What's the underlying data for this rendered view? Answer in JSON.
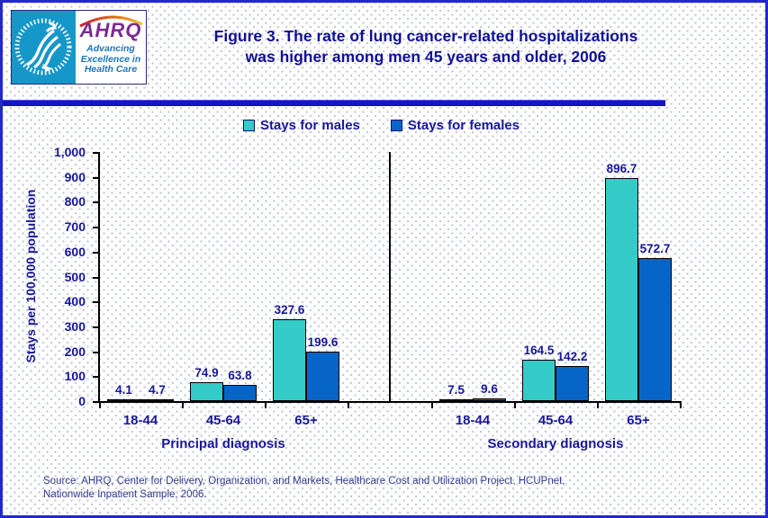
{
  "header": {
    "logo": {
      "name": "AHRQ",
      "tagline_lines": [
        "Advancing",
        "Excellence in",
        "Health Care"
      ],
      "hhs_icon": "hhs-eagle"
    },
    "title_line1": "Figure 3. The rate of lung cancer-related hospitalizations",
    "title_line2": "was higher among men 45 years and older, 2006"
  },
  "legend": {
    "items": [
      {
        "label": "Stays for males",
        "color": "#35cbc9"
      },
      {
        "label": "Stays for females",
        "color": "#0765c8"
      }
    ]
  },
  "chart_data": {
    "type": "bar",
    "title": "Figure 3. The rate of lung cancer-related hospitalizations was higher among men 45 years and older, 2006",
    "ylabel": "Stays per 100,000 population",
    "ylim": [
      0,
      1000
    ],
    "ytick_interval": 100,
    "yticks": [
      "0",
      "100",
      "200",
      "300",
      "400",
      "500",
      "600",
      "700",
      "800",
      "900",
      "1,000"
    ],
    "grid": false,
    "legend_position": "top",
    "groups": [
      {
        "label": "Principal diagnosis",
        "categories": [
          "18-44",
          "45-64",
          "65+"
        ],
        "series": [
          {
            "name": "Stays for males",
            "color": "#35cbc9",
            "values": [
              4.1,
              74.9,
              327.6
            ]
          },
          {
            "name": "Stays for females",
            "color": "#0765c8",
            "values": [
              4.7,
              63.8,
              199.6
            ]
          }
        ]
      },
      {
        "label": "Secondary diagnosis",
        "categories": [
          "18-44",
          "45-64",
          "65+"
        ],
        "series": [
          {
            "name": "Stays for males",
            "color": "#35cbc9",
            "values": [
              7.5,
              164.5,
              896.7
            ]
          },
          {
            "name": "Stays for females",
            "color": "#0765c8",
            "values": [
              9.6,
              142.2,
              572.7
            ]
          }
        ]
      }
    ]
  },
  "source": {
    "line1": "Source: AHRQ, Center for Delivery, Organization, and Markets, Healthcare Cost and Utilization Project, HCUPnet,",
    "line2": "Nationwide Inpatient Sample, 2006."
  }
}
